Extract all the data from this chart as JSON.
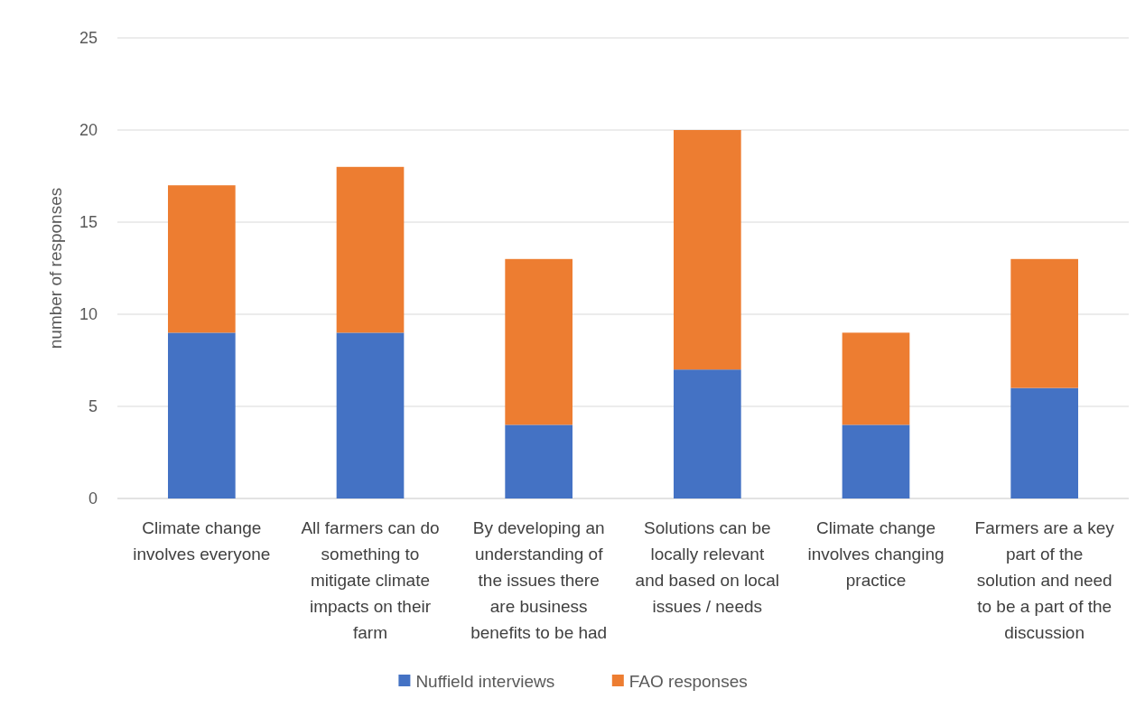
{
  "chart_data": {
    "type": "bar",
    "stacked": true,
    "ylabel": "number of responses",
    "categories": [
      "Climate change involves everyone",
      "All farmers can do something to mitigate climate impacts on their farm",
      "By developing an understanding of the issues there are business benefits to be had",
      "Solutions can be locally relevant and based on local issues / needs",
      "Climate change involves changing practice",
      "Farmers are a key part of the solution and need to be a part of the discussion"
    ],
    "series": [
      {
        "name": "Nuffield interviews",
        "color": "#4472c4",
        "values": [
          9,
          9,
          4,
          7,
          4,
          6
        ]
      },
      {
        "name": "FAO responses",
        "color": "#ed7d31",
        "values": [
          8,
          9,
          9,
          13,
          5,
          7
        ]
      }
    ],
    "ylim": [
      0,
      25
    ],
    "yticks": [
      0,
      5,
      10,
      15,
      20,
      25
    ],
    "grid": "y",
    "legend": "bottom"
  }
}
